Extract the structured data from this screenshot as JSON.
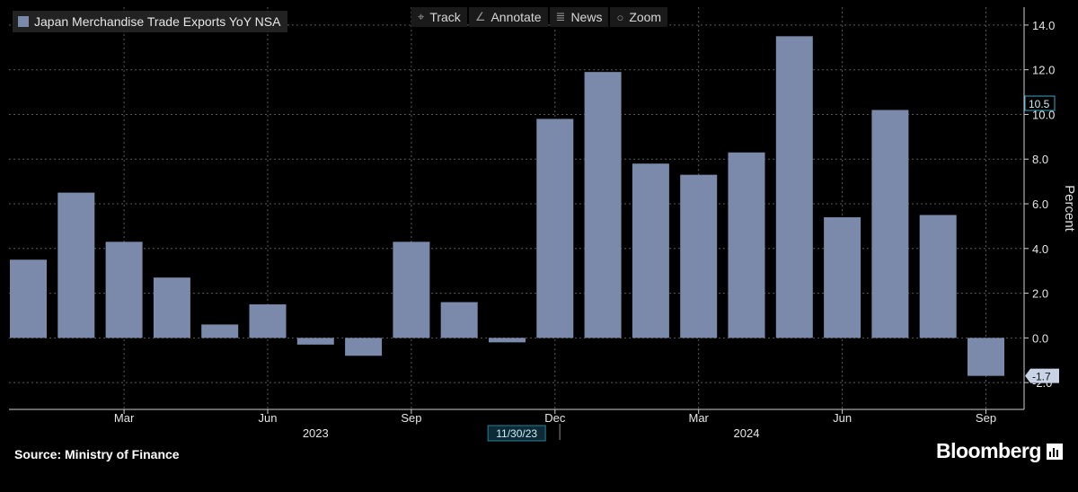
{
  "legend": {
    "label": "Japan Merchandise Trade Exports YoY NSA",
    "color": "#7b8aab"
  },
  "toolbar": [
    {
      "label": "Track",
      "icon": "crosshair-icon"
    },
    {
      "label": "Annotate",
      "icon": "pencil-icon"
    },
    {
      "label": "News",
      "icon": "news-icon"
    },
    {
      "label": "Zoom",
      "icon": "magnifier-icon"
    }
  ],
  "footer": {
    "source": "Source: Ministry of Finance",
    "brand": "Bloomberg"
  },
  "chart_data": {
    "type": "bar",
    "categories": [
      "2023-01",
      "2023-02",
      "2023-03",
      "2023-04",
      "2023-05",
      "2023-06",
      "2023-07",
      "2023-08",
      "2023-09",
      "2023-10",
      "2023-11",
      "2023-12",
      "2024-01",
      "2024-02",
      "2024-03",
      "2024-04",
      "2024-05",
      "2024-06",
      "2024-07",
      "2024-08",
      "2024-09"
    ],
    "values": [
      3.5,
      6.5,
      4.3,
      2.7,
      0.6,
      1.5,
      -0.3,
      -0.8,
      4.3,
      1.6,
      -0.2,
      9.8,
      11.9,
      7.8,
      7.3,
      8.3,
      13.5,
      5.4,
      10.2,
      5.5,
      -1.7
    ],
    "ylabel": "Percent",
    "ylim": [
      -3.2,
      14.8
    ],
    "yticks": [
      14.0,
      12.0,
      10.0,
      8.0,
      6.0,
      4.0,
      2.0,
      0.0,
      -2.0
    ],
    "ytick_labels": [
      "14.0",
      "12.0",
      "10.0",
      "8.0",
      "6.0",
      "4.0",
      "2.0",
      "0.0",
      "-2.0"
    ],
    "xticks": [
      {
        "index": 2,
        "label": "Mar"
      },
      {
        "index": 5,
        "label": "Jun"
      },
      {
        "index": 8,
        "label": "Sep"
      },
      {
        "index": 11,
        "label": "Dec"
      },
      {
        "index": 14,
        "label": "Mar"
      },
      {
        "index": 17,
        "label": "Jun"
      },
      {
        "index": 20,
        "label": "Sep"
      }
    ],
    "year_labels": [
      {
        "center_index": 6,
        "label": "2023"
      },
      {
        "center_index": 15,
        "label": "2024"
      }
    ],
    "year_separator_after_index": 10.5,
    "date_marker": "11/30/23",
    "value_tags": [
      {
        "value": 10.5,
        "label": "10.5",
        "style": "outline"
      },
      {
        "value": -1.7,
        "label": "-1.7",
        "style": "filled"
      }
    ],
    "grid": true,
    "legend_position": "top-left",
    "colors": {
      "bar": "#7b8aab",
      "grid": "#5a5a5a",
      "axis": "#cfcfcf",
      "tag_fill": "#c9d3e6"
    }
  }
}
